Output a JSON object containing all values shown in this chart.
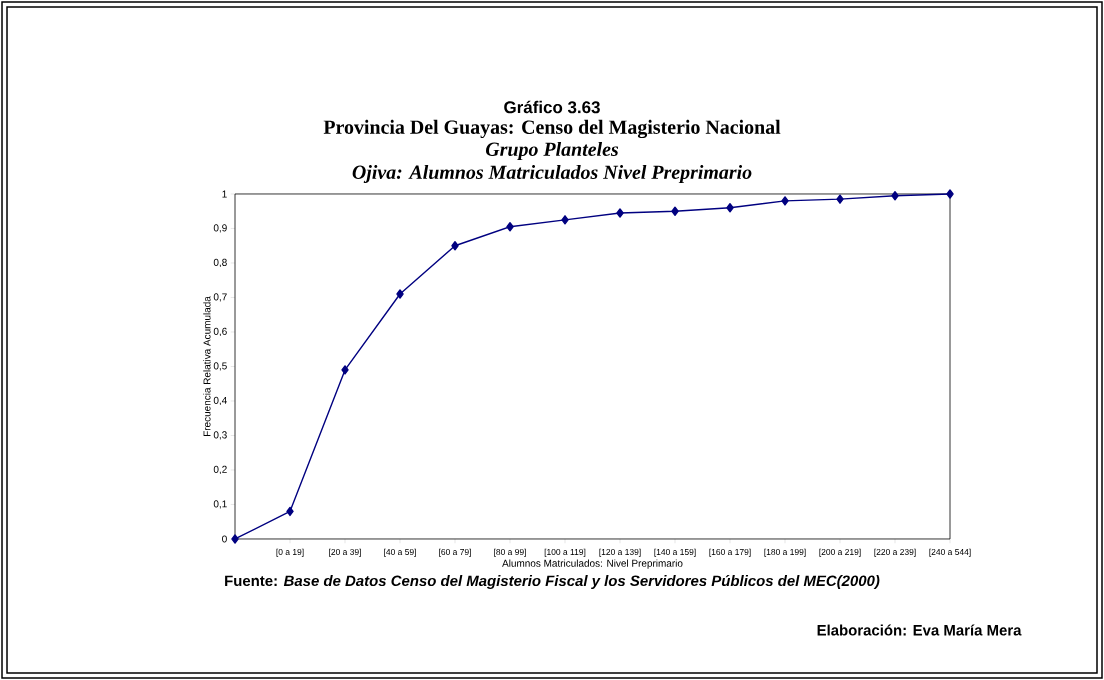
{
  "chart_data": {
    "type": "line",
    "title": "Gráfico 3.63",
    "subtitle": "Provincia Del Guayas: Censo del Magisterio Nacional",
    "xlabel": "Alumnos Matriculados: Nivel Preprimario",
    "ylabel": "Frecuencia Relativa Acumulada",
    "categories": [
      null,
      "[0 a 19]",
      "[20 a 39]",
      "[40 a 59]",
      "[60 a 79]",
      "[80 a 99]",
      "[100 a 119]",
      "[120 a 139]",
      "[140 a 159]",
      "[160 a 179]",
      "[180 a 199]",
      "[200 a 219]",
      "[220 a 239]",
      "[240 a 544]"
    ],
    "values": [
      0,
      0.08,
      0.49,
      0.71,
      0.85,
      0.905,
      0.925,
      0.945,
      0.95,
      0.96,
      0.98,
      0.985,
      0.995,
      1
    ],
    "color": "#000080",
    "marker": "diamond",
    "line_style": "solid",
    "ylim": [
      0,
      1
    ],
    "yticks": [
      0,
      {
        "value": 0.1,
        "label": "0,1"
      },
      {
        "value": 0.2,
        "label": "0,2"
      },
      {
        "value": 0.3,
        "label": "0,3"
      },
      {
        "value": 0.4,
        "label": "0,4"
      },
      {
        "value": 0.5,
        "label": "0,5"
      },
      {
        "value": 0.6,
        "label": "0,6"
      },
      {
        "value": 0.7,
        "label": "0,7"
      },
      {
        "value": 0.8,
        "label": "0,8"
      },
      {
        "value": 0.9,
        "label": "0,9"
      },
      1
    ],
    "annotations": [
      "Grupo Planteles",
      "Ojiva:  Alumnos Matriculados Nivel Preprimario",
      "Fuente: *Base de Datos Censo del Magisterio Fiscal y los Servidores Públicos del MEC(2000)*",
      "Elaboración: Eva María Mera"
    ]
  }
}
